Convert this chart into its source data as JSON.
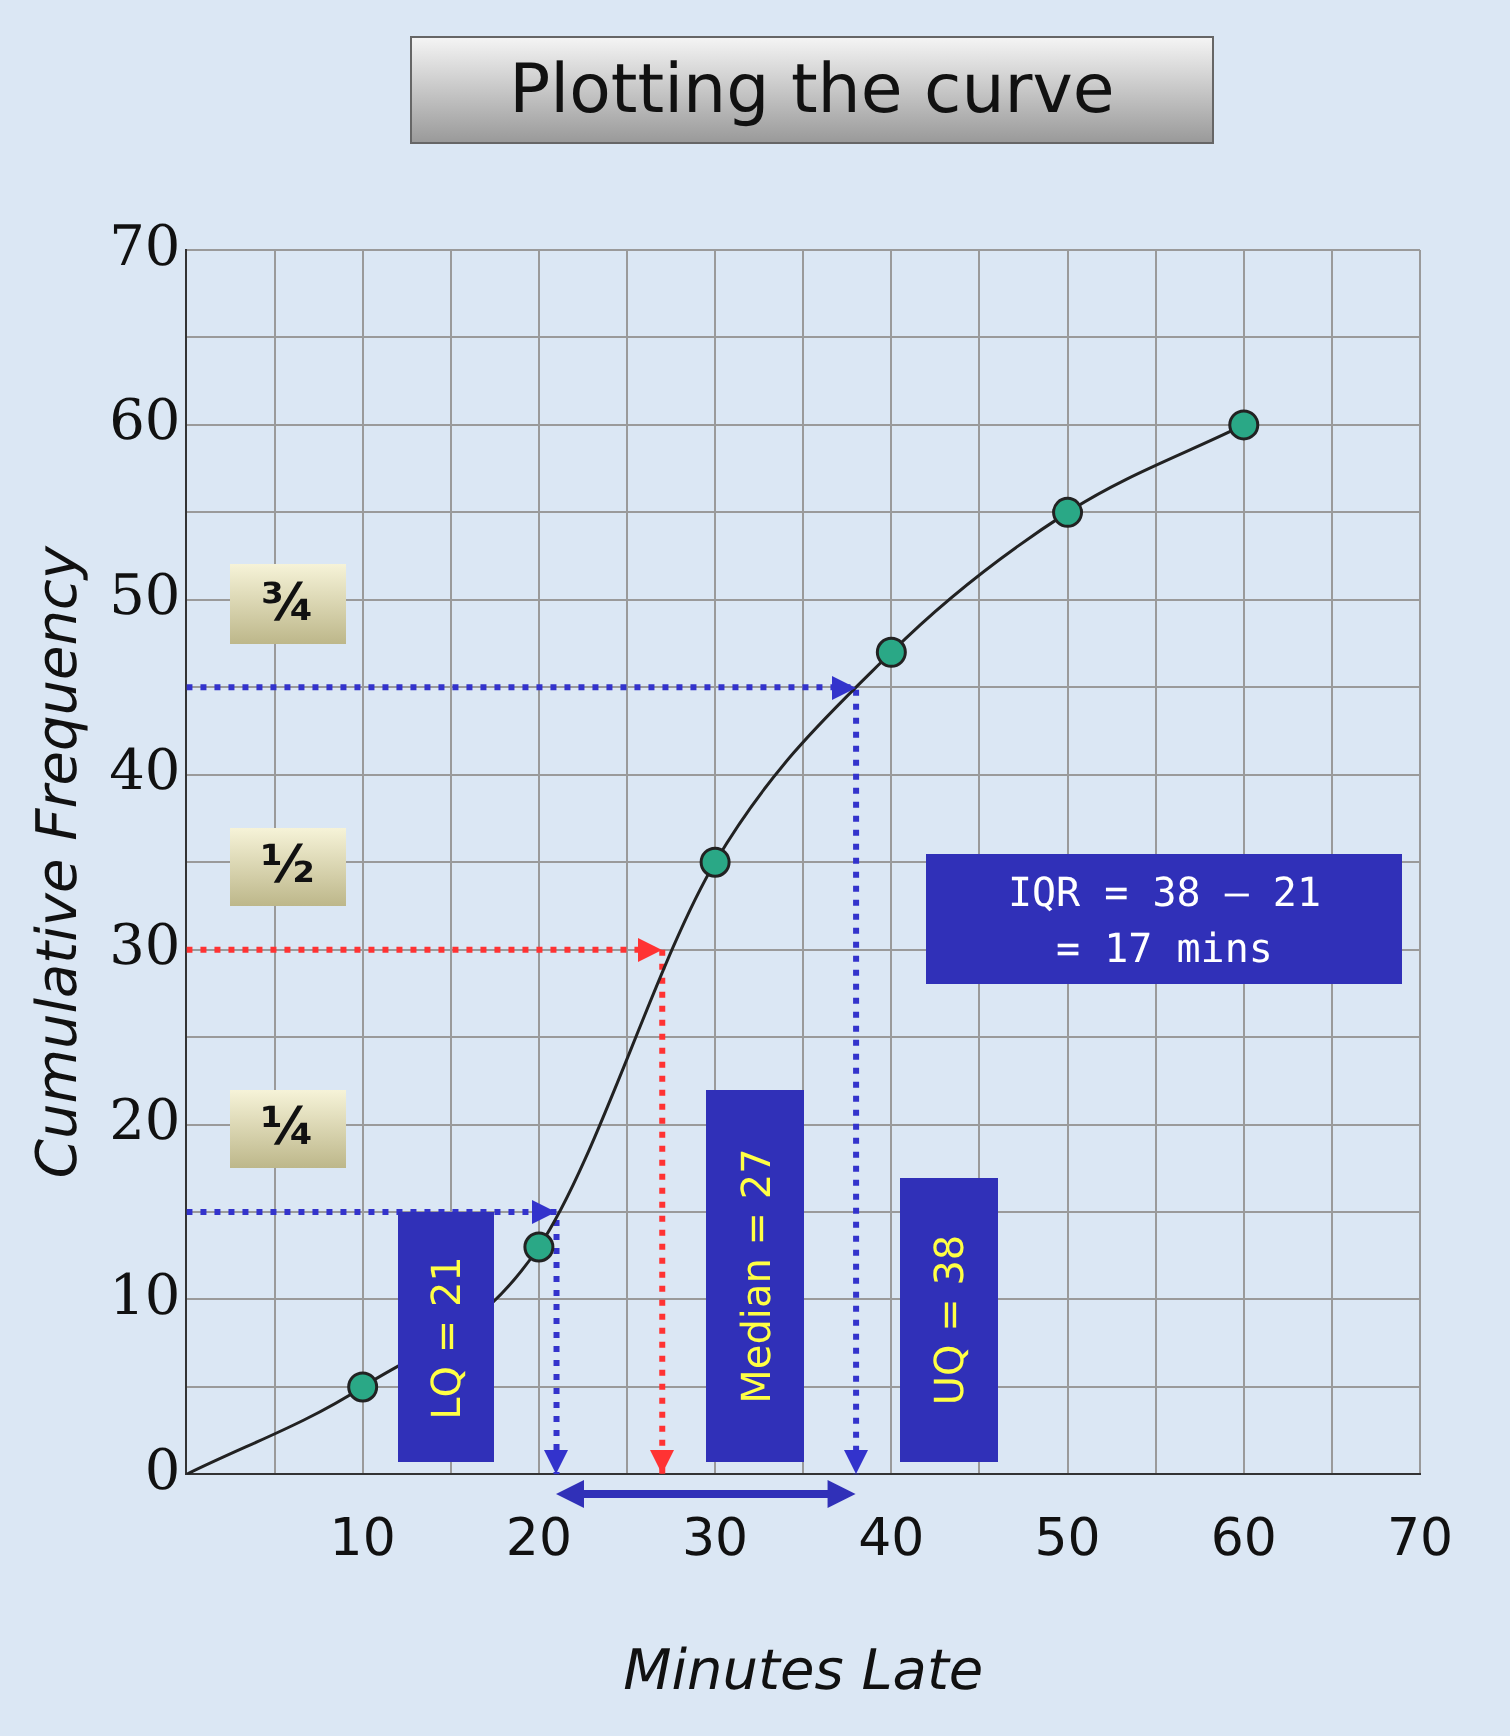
{
  "chart_data": {
    "type": "line",
    "title": "Plotting the curve",
    "xlabel": "Minutes Late",
    "ylabel": "Cumulative Frequency",
    "xlim": [
      0,
      70
    ],
    "ylim": [
      0,
      70
    ],
    "xticks": [
      {
        "value": 0,
        "label": null
      },
      {
        "value": 5,
        "label": null
      },
      10,
      {
        "value": 15,
        "label": null
      },
      20,
      {
        "value": 25,
        "label": null
      },
      30,
      {
        "value": 35,
        "label": null
      },
      40,
      {
        "value": 45,
        "label": null
      },
      50,
      {
        "value": 55,
        "label": null
      },
      60,
      {
        "value": 65,
        "label": null
      },
      70
    ],
    "yticks": [
      0,
      {
        "value": 5,
        "label": null
      },
      10,
      {
        "value": 15,
        "label": null
      },
      20,
      {
        "value": 25,
        "label": null
      },
      30,
      {
        "value": 35,
        "label": null
      },
      40,
      {
        "value": 45,
        "label": null
      },
      50,
      {
        "value": 55,
        "label": null
      },
      60,
      {
        "value": 65,
        "label": null
      },
      70
    ],
    "grid": true,
    "series": [
      {
        "color": "#222222",
        "marker": "circle",
        "line_style": "solid",
        "x": [
          0,
          10,
          20,
          30,
          40,
          50,
          60
        ],
        "values": [
          0,
          5,
          13,
          35,
          47,
          55,
          60
        ]
      },
      {
        "color": "#3333cc",
        "marker": "none",
        "line_style": "dotted",
        "x": [
          0,
          21,
          21
        ],
        "values": [
          15,
          15,
          0
        ]
      },
      {
        "color": "#ff3333",
        "marker": "none",
        "line_style": "dotted",
        "x": [
          0,
          27,
          27
        ],
        "values": [
          30,
          30,
          0
        ]
      },
      {
        "color": "#3333cc",
        "marker": "none",
        "line_style": "dotted",
        "x": [
          0,
          38,
          38
        ],
        "values": [
          45,
          45,
          0
        ]
      }
    ],
    "annotations": [
      "¾",
      "½",
      "¼",
      "LQ = 21",
      "Median = 27",
      "UQ = 38",
      "IQR = 38 – 21\n= 17 mins"
    ]
  }
}
